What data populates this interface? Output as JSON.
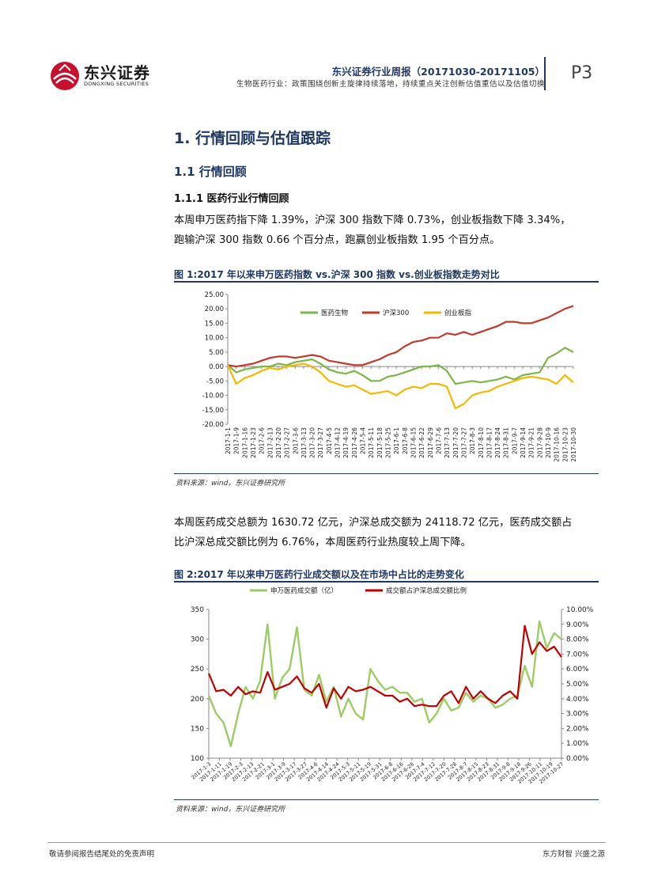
{
  "header": {
    "logo_cn": "东兴证券",
    "logo_en": "DONGXING SECURITIES",
    "report_title": "东兴证券行业周报（20171030-20171105）",
    "subtitle": "生物医药行业：政策围绕创新主旋律持续落地，持续重点关注创新估值重估以及估值切换",
    "page_no": "P3"
  },
  "section": {
    "h1": "1. 行情回顾与估值跟踪",
    "h2": "1.1 行情回顾",
    "h3": "1.1.1 医药行业行情回顾"
  },
  "paragraphs": {
    "p1_line1": "本周申万医药指下降 1.39%，沪深 300 指数下降 0.73%，创业板指数下降 3.34%，",
    "p1_line2": "跑输沪深 300 指数 0.66 个百分点，跑赢创业板指数 1.95 个百分点。",
    "p2_line1": "本周医药成交总额为 1630.72 亿元，沪深总成交额为 24118.72 亿元，医药成交额占",
    "p2_line2": "比沪深总成交额比例为 6.76%，本周医药行业热度较上周下降。"
  },
  "figures": {
    "fig1_title": "图 1:2017 年以来申万医药指数 vs.沪深 300 指数 vs.创业板指数走势对比",
    "fig2_title": "图 2:2017 年以来申万医药行业成交额以及在市场中占比的走势变化",
    "source": "资料来源：wind，东兴证券研究所"
  },
  "footer": {
    "left": "敬请参阅报告结尾处的免责声明",
    "right": "东方财智  兴盛之源"
  },
  "chart_data": [
    {
      "type": "line",
      "title": "",
      "ylim": [
        -20,
        25
      ],
      "yticks": [
        "25.00",
        "20.00",
        "15.00",
        "10.00",
        "5.00",
        "0.00",
        "-5.00",
        "-10.00",
        "-15.00",
        "-20.00"
      ],
      "legend_position": "top-center",
      "grid": false,
      "categories": [
        "2017-1-1",
        "2017-1-9",
        "2017-1-16",
        "2017-1-23",
        "2017-2-6",
        "2017-2-13",
        "2017-2-20",
        "2017-2-27",
        "2017-3-6",
        "2017-3-13",
        "2017-3-20",
        "2017-3-27",
        "2017-4-5",
        "2017-4-12",
        "2017-4-19",
        "2017-4-26",
        "2017-5-4",
        "2017-5-11",
        "2017-5-18",
        "2017-5-25",
        "2017-6-1",
        "2017-6-8",
        "2017-6-15",
        "2017-6-22",
        "2017-6-29",
        "2017-7-6",
        "2017-7-13",
        "2017-7-20",
        "2017-7-27",
        "2017-8-3",
        "2017-8-10",
        "2017-8-17",
        "2017-8-24",
        "2017-8-31",
        "2017-9-7",
        "2017-9-14",
        "2017-9-21",
        "2017-9-28",
        "2017-10-9",
        "2017-10-16",
        "2017-10-23",
        "2017-10-30"
      ],
      "xtick_labels": [
        "2017-1-1",
        "2017-1-9",
        "2017-1-16",
        "2017-1-23",
        "2017-2-6",
        "2017-2-13",
        "2017-2-20",
        "2017-2-27",
        "2017-3-6",
        "2017-3-13",
        "2017-3-20",
        "2017-3-27",
        "2017-4-5",
        "2017-4-12",
        "2017-4-19",
        "2017-4-26",
        "2017-5-4",
        "2017-5-11",
        "2017-5-18",
        "2017-5-25",
        "2017-6-1",
        "2017-6-8",
        "2017-6-15",
        "2017-6-22",
        "2017-6-29",
        "2017-7-6",
        "2017-7-13",
        "2017-7-20",
        "2017-7-27",
        "2017-8-3",
        "2017-8-10",
        "2017-8-17",
        "2017-8-24",
        "2017-8-31",
        "2017-9-7",
        "2017-9-14",
        "2017-9-21",
        "2017-9-28",
        "2017-10-9",
        "2017-10-16",
        "2017-10-23",
        "2017-10-30"
      ],
      "series": [
        {
          "name": "医药生物",
          "color": "#7ab648",
          "values": [
            0.5,
            -2.0,
            -1.0,
            -0.5,
            0.0,
            0.0,
            1.0,
            0.5,
            1.5,
            2.0,
            2.5,
            1.0,
            -1.0,
            -2.0,
            -2.5,
            -1.5,
            -3.0,
            -5.0,
            -5.0,
            -3.5,
            -3.0,
            -2.0,
            -1.0,
            0.0,
            0.0,
            0.5,
            -1.5,
            -6.0,
            -5.5,
            -5.0,
            -5.5,
            -5.0,
            -4.5,
            -3.5,
            -4.5,
            -3.0,
            -2.5,
            -2.0,
            3.0,
            4.5,
            6.5,
            5.0
          ]
        },
        {
          "name": "沪深300",
          "color": "#c0392b",
          "values": [
            0.5,
            0.0,
            0.5,
            1.0,
            2.0,
            3.0,
            3.5,
            3.5,
            3.0,
            3.5,
            4.0,
            3.5,
            2.0,
            1.5,
            1.0,
            0.5,
            0.5,
            1.5,
            2.5,
            4.0,
            5.0,
            7.0,
            8.5,
            9.0,
            10.0,
            10.0,
            11.5,
            11.0,
            12.0,
            11.0,
            12.0,
            13.0,
            14.0,
            15.5,
            15.5,
            15.0,
            15.0,
            16.0,
            17.0,
            18.5,
            20.0,
            21.0
          ]
        },
        {
          "name": "创业板指",
          "color": "#f5b800",
          "values": [
            0.5,
            -6.0,
            -4.0,
            -3.0,
            -1.5,
            -0.5,
            -1.0,
            0.0,
            0.5,
            1.0,
            0.0,
            -2.0,
            -5.0,
            -6.0,
            -7.0,
            -6.5,
            -8.0,
            -9.5,
            -9.0,
            -8.5,
            -10.0,
            -8.0,
            -7.0,
            -7.5,
            -6.0,
            -6.0,
            -7.0,
            -14.5,
            -13.0,
            -10.0,
            -9.0,
            -8.5,
            -7.0,
            -6.0,
            -5.0,
            -4.0,
            -3.5,
            -4.0,
            -4.5,
            -6.0,
            -3.0,
            -5.5
          ]
        }
      ]
    },
    {
      "type": "line",
      "title": "",
      "ylim": [
        100,
        350
      ],
      "yticks_left": [
        "350",
        "300",
        "250",
        "200",
        "150",
        "100"
      ],
      "y2lim": [
        0,
        10
      ],
      "yticks_right": [
        "10.00%",
        "9.00%",
        "8.00%",
        "7.00%",
        "6.00%",
        "5.00%",
        "4.00%",
        "3.00%",
        "2.00%",
        "1.00%",
        "0.00%"
      ],
      "legend_position": "top-center",
      "grid": false,
      "xtick_labels": [
        "2017-1-3",
        "2017-1-11",
        "2017-1-19",
        "2017-2-3",
        "2017-2-13",
        "2017-2-21",
        "2017-3-1",
        "2017-3-9",
        "2017-3-17",
        "2017-3-27",
        "2017-4-6",
        "2017-4-14",
        "2017-4-24",
        "2017-5-3",
        "2017-5-11",
        "2017-5-19",
        "2017-5-31",
        "2017-6-8",
        "2017-6-16",
        "2017-6-26",
        "2017-7-4",
        "2017-7-12",
        "2017-7-20",
        "2017-7-28",
        "2017-8-7",
        "2017-8-15",
        "2017-8-23",
        "2017-8-31",
        "2017-9-8",
        "2017-9-18",
        "2017-9-26",
        "2017-10-11",
        "2017-10-19",
        "2017-10-27"
      ],
      "series": [
        {
          "name": "申万医药成交额（亿）",
          "color": "#9ccc65",
          "axis": "left",
          "values": [
            205,
            175,
            160,
            120,
            175,
            220,
            200,
            230,
            325,
            200,
            235,
            250,
            320,
            215,
            205,
            240,
            195,
            220,
            170,
            200,
            175,
            165,
            250,
            230,
            215,
            220,
            210,
            210,
            195,
            200,
            160,
            175,
            200,
            180,
            185,
            210,
            195,
            205,
            200,
            185,
            190,
            200,
            205,
            255,
            220,
            330,
            285,
            310,
            300
          ]
        },
        {
          "name": "成交额占沪深总成交额比例",
          "color": "#c00000",
          "axis": "right",
          "values": [
            5.7,
            4.5,
            4.6,
            4.2,
            4.8,
            4.3,
            4.5,
            4.4,
            5.8,
            4.6,
            4.8,
            5.0,
            5.5,
            4.7,
            4.4,
            5.0,
            3.4,
            4.7,
            4.0,
            4.8,
            4.5,
            4.6,
            4.8,
            4.5,
            4.2,
            4.2,
            3.8,
            4.0,
            3.5,
            3.6,
            3.5,
            3.5,
            4.2,
            4.5,
            3.7,
            4.8,
            4.0,
            4.5,
            4.0,
            3.7,
            4.2,
            4.5,
            4.0,
            8.9,
            7.0,
            7.8,
            7.2,
            7.5,
            6.8
          ]
        }
      ]
    }
  ]
}
